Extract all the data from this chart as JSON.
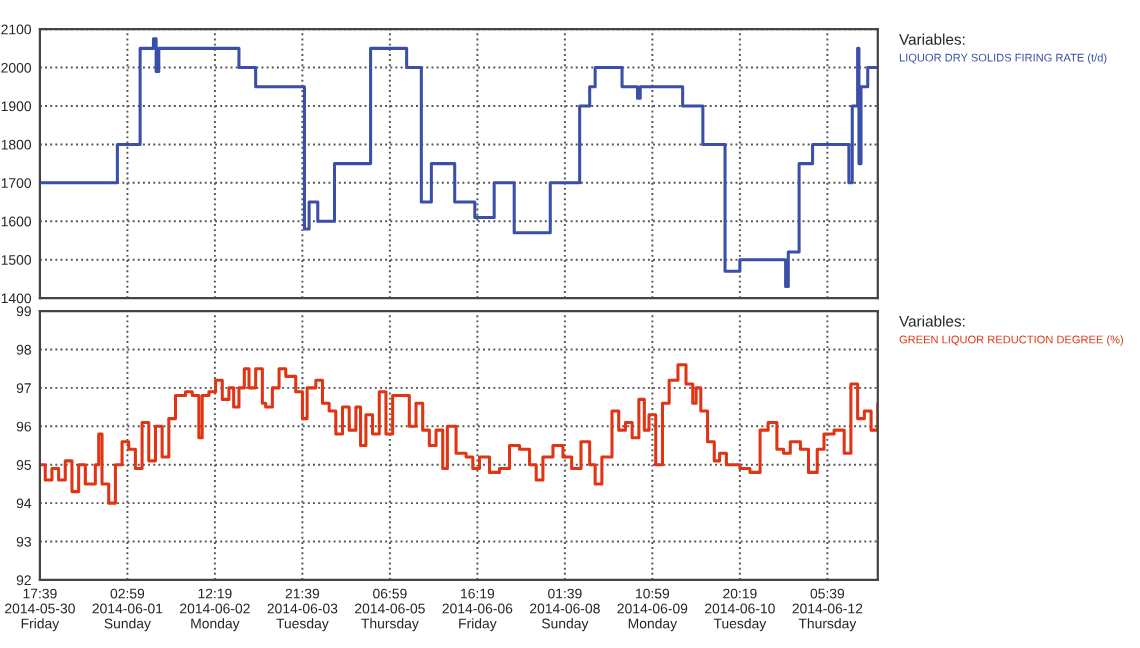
{
  "chart_data": [
    {
      "type": "step",
      "tick_labels": "y",
      "grid": true,
      "legend": "top right",
      "legend_title": "Variables:",
      "line_style": "solid",
      "marker": "none",
      "xlim": [
        "2014-05-30T17:39",
        "2014-06-13T00:52"
      ],
      "xticks": [
        "2014-05-30T17:39",
        "2014-06-01T02:59",
        "2014-06-02T12:19",
        "2014-06-03T21:39",
        "2014-06-05T06:59",
        "2014-06-06T16:19",
        "2014-06-08T01:39",
        "2014-06-09T10:59",
        "2014-06-10T20:19",
        "2014-06-12T05:39"
      ],
      "ylim": [
        1400,
        2100
      ],
      "yticks": [
        1400,
        1500,
        1600,
        1700,
        1800,
        1900,
        2000,
        2100
      ],
      "series": [
        {
          "name": "LIQUOR DRY SOLIDS FIRING RATE (t/d)",
          "color": "#3a4fa8",
          "x": [
            "2014-05-30T17:39",
            "2014-05-31T23:10",
            "2014-06-01T07:50",
            "2014-06-01T12:55",
            "2014-06-01T13:56",
            "2014-06-01T14:57",
            "2014-06-02T21:29",
            "2014-06-03T03:51",
            "2014-06-03T22:26",
            "2014-06-04T00:13",
            "2014-06-04T03:31",
            "2014-06-04T09:53",
            "2014-06-04T23:38",
            "2014-06-05T13:22",
            "2014-06-05T18:58",
            "2014-06-05T22:47",
            "2014-06-06T07:41",
            "2014-06-06T15:20",
            "2014-06-06T22:43",
            "2014-06-07T06:21",
            "2014-06-07T20:05",
            "2014-06-08T07:17",
            "2014-06-08T11:06",
            "2014-06-08T13:11",
            "2014-06-08T23:26",
            "2014-06-09T05:20",
            "2014-06-09T06:22",
            "2014-06-09T22:31",
            "2014-06-10T06:13",
            "2014-06-10T14:40",
            "2014-06-10T20:19",
            "2014-06-11T13:45",
            "2014-06-11T14:46",
            "2014-06-11T18:53",
            "2014-06-12T00:01",
            "2014-06-12T13:51",
            "2014-06-12T15:08",
            "2014-06-12T17:11",
            "2014-06-12T17:41",
            "2014-06-12T18:28",
            "2014-06-12T21:02",
            "2014-06-13T00:52"
          ],
          "values": [
            1700,
            1800,
            2050,
            2075,
            1990,
            2050,
            2000,
            1950,
            1580,
            1650,
            1600,
            1750,
            2050,
            2000,
            1650,
            1750,
            1650,
            1610,
            1700,
            1570,
            1700,
            1900,
            1950,
            2000,
            1950,
            1920,
            1950,
            1900,
            1800,
            1470,
            1500,
            1430,
            1520,
            1750,
            1800,
            1700,
            1900,
            2050,
            1750,
            1950,
            2000,
            2000
          ]
        }
      ]
    },
    {
      "type": "step",
      "grid": true,
      "legend": "top right",
      "legend_title": "Variables:",
      "line_style": "solid",
      "marker": "none",
      "xlim": [
        "2014-05-30T17:39",
        "2014-06-13T00:52"
      ],
      "xticks": [
        {
          "value": "2014-05-30T17:39",
          "label": "17:39\n2014-05-30\nFriday"
        },
        {
          "value": "2014-06-01T02:59",
          "label": "02:59\n2014-06-01\nSunday"
        },
        {
          "value": "2014-06-02T12:19",
          "label": "12:19\n2014-06-02\nMonday"
        },
        {
          "value": "2014-06-03T21:39",
          "label": "21:39\n2014-06-03\nTuesday"
        },
        {
          "value": "2014-06-05T06:59",
          "label": "06:59\n2014-06-05\nThursday"
        },
        {
          "value": "2014-06-06T16:19",
          "label": "16:19\n2014-06-06\nFriday"
        },
        {
          "value": "2014-06-08T01:39",
          "label": "01:39\n2014-06-08\nSunday"
        },
        {
          "value": "2014-06-09T10:59",
          "label": "10:59\n2014-06-09\nMonday"
        },
        {
          "value": "2014-06-10T20:19",
          "label": "20:19\n2014-06-10\nTuesday"
        },
        {
          "value": "2014-06-12T05:39",
          "label": "05:39\n2014-06-12\nThursday"
        }
      ],
      "ylim": [
        92,
        99
      ],
      "yticks": [
        92,
        93,
        94,
        95,
        96,
        97,
        98,
        99
      ],
      "series": [
        {
          "name": "GREEN LIQUOR REDUCTION DEGREE (%)",
          "color": "#e03414",
          "x": [
            "2014-05-30T17:39",
            "2014-05-30T19:41",
            "2014-05-30T22:14",
            "2014-05-31T00:47",
            "2014-05-31T03:19",
            "2014-05-31T05:52",
            "2014-05-31T08:25",
            "2014-05-31T10:58",
            "2014-05-31T14:46",
            "2014-05-31T16:03",
            "2014-05-31T17:19",
            "2014-05-31T19:52",
            "2014-05-31T22:25",
            "2014-06-01T00:57",
            "2014-06-01T03:30",
            "2014-06-01T06:02",
            "2014-06-01T08:35",
            "2014-06-01T11:08",
            "2014-06-01T13:41",
            "2014-06-01T16:13",
            "2014-06-01T18:46",
            "2014-06-01T21:19",
            "2014-06-02T01:08",
            "2014-06-02T03:41",
            "2014-06-02T06:13",
            "2014-06-02T07:29",
            "2014-06-02T10:02",
            "2014-06-02T12:35",
            "2014-06-02T15:08",
            "2014-06-02T17:40",
            "2014-06-02T19:28",
            "2014-06-02T21:29",
            "2014-06-02T23:32",
            "2014-06-03T01:19",
            "2014-06-03T03:51",
            "2014-06-03T06:24",
            "2014-06-03T07:40",
            "2014-06-03T10:13",
            "2014-06-03T12:46",
            "2014-06-03T15:19",
            "2014-06-03T19:07",
            "2014-06-03T21:40",
            "2014-06-03T23:27",
            "2014-06-04T02:46",
            "2014-06-04T05:18",
            "2014-06-04T07:51",
            "2014-06-04T10:23",
            "2014-06-04T12:56",
            "2014-06-04T15:29",
            "2014-06-04T18:02",
            "2014-06-04T19:49",
            "2014-06-04T21:51",
            "2014-06-05T00:23",
            "2014-06-05T02:56",
            "2014-06-05T05:29",
            "2014-06-05T08:02",
            "2014-06-05T11:50",
            "2014-06-05T14:23",
            "2014-06-05T16:56",
            "2014-06-05T19:29",
            "2014-06-05T22:01",
            "2014-06-06T00:34",
            "2014-06-06T03:07",
            "2014-06-06T04:53",
            "2014-06-06T08:12",
            "2014-06-06T12:01",
            "2014-06-06T14:34",
            "2014-06-06T17:07",
            "2014-06-06T20:56",
            "2014-06-07T00:45",
            "2014-06-07T04:34",
            "2014-06-07T08:23",
            "2014-06-07T12:12",
            "2014-06-07T14:44",
            "2014-06-07T17:17",
            "2014-06-07T21:07",
            "2014-06-08T00:55",
            "2014-06-08T04:14",
            "2014-06-08T07:47",
            "2014-06-08T11:06",
            "2014-06-08T13:11",
            "2014-06-08T15:45",
            "2014-06-08T19:36",
            "2014-06-08T22:10",
            "2014-06-09T00:44",
            "2014-06-09T03:17",
            "2014-06-09T05:51",
            "2014-06-09T07:55",
            "2014-06-09T09:42",
            "2014-06-09T12:16",
            "2014-06-09T14:50",
            "2014-06-09T17:23",
            "2014-06-09T20:44",
            "2014-06-09T23:48",
            "2014-06-10T02:22",
            "2014-06-10T03:39",
            "2014-06-10T05:26",
            "2014-06-10T08:01",
            "2014-06-10T10:34",
            "2014-06-10T12:37",
            "2014-06-10T15:11",
            "2014-06-10T20:19",
            "2014-06-11T00:10",
            "2014-06-11T04:01",
            "2014-06-11T07:05",
            "2014-06-11T10:25",
            "2014-06-11T12:59",
            "2014-06-11T15:32",
            "2014-06-11T19:23",
            "2014-06-11T22:28",
            "2014-06-12T01:48",
            "2014-06-12T04:22",
            "2014-06-12T08:13",
            "2014-06-12T12:04",
            "2014-06-12T14:37",
            "2014-06-12T17:11",
            "2014-06-12T19:45",
            "2014-06-12T22:19",
            "2014-06-13T00:52"
          ],
          "values": [
            95.0,
            94.6,
            94.9,
            94.6,
            95.1,
            94.3,
            95.0,
            94.5,
            95.0,
            95.8,
            94.5,
            94.0,
            95.0,
            95.6,
            95.4,
            94.9,
            96.1,
            95.1,
            96.0,
            95.2,
            96.2,
            96.8,
            96.9,
            96.8,
            95.7,
            96.8,
            96.9,
            97.2,
            96.7,
            97.0,
            96.5,
            97.0,
            97.5,
            97.0,
            97.5,
            96.6,
            96.5,
            97.0,
            97.5,
            97.3,
            96.9,
            96.2,
            97.0,
            97.2,
            96.6,
            96.4,
            95.8,
            96.5,
            95.9,
            96.5,
            95.5,
            96.3,
            95.8,
            96.9,
            95.8,
            96.8,
            96.8,
            96.0,
            96.6,
            95.9,
            95.5,
            95.9,
            94.9,
            96.0,
            95.3,
            95.2,
            94.9,
            95.2,
            94.8,
            94.9,
            95.5,
            95.4,
            95.0,
            94.6,
            95.2,
            95.5,
            95.2,
            94.9,
            95.6,
            95.0,
            94.5,
            95.2,
            96.4,
            95.9,
            96.1,
            95.7,
            96.7,
            95.9,
            96.3,
            95.0,
            96.6,
            97.2,
            97.6,
            97.1,
            96.6,
            97.0,
            96.4,
            95.6,
            95.1,
            95.3,
            95.0,
            94.9,
            94.8,
            95.9,
            96.1,
            95.4,
            95.3,
            95.6,
            95.4,
            94.8,
            95.4,
            95.8,
            95.9,
            95.3,
            97.1,
            96.2,
            96.4,
            95.9,
            96.6
          ]
        }
      ]
    }
  ]
}
